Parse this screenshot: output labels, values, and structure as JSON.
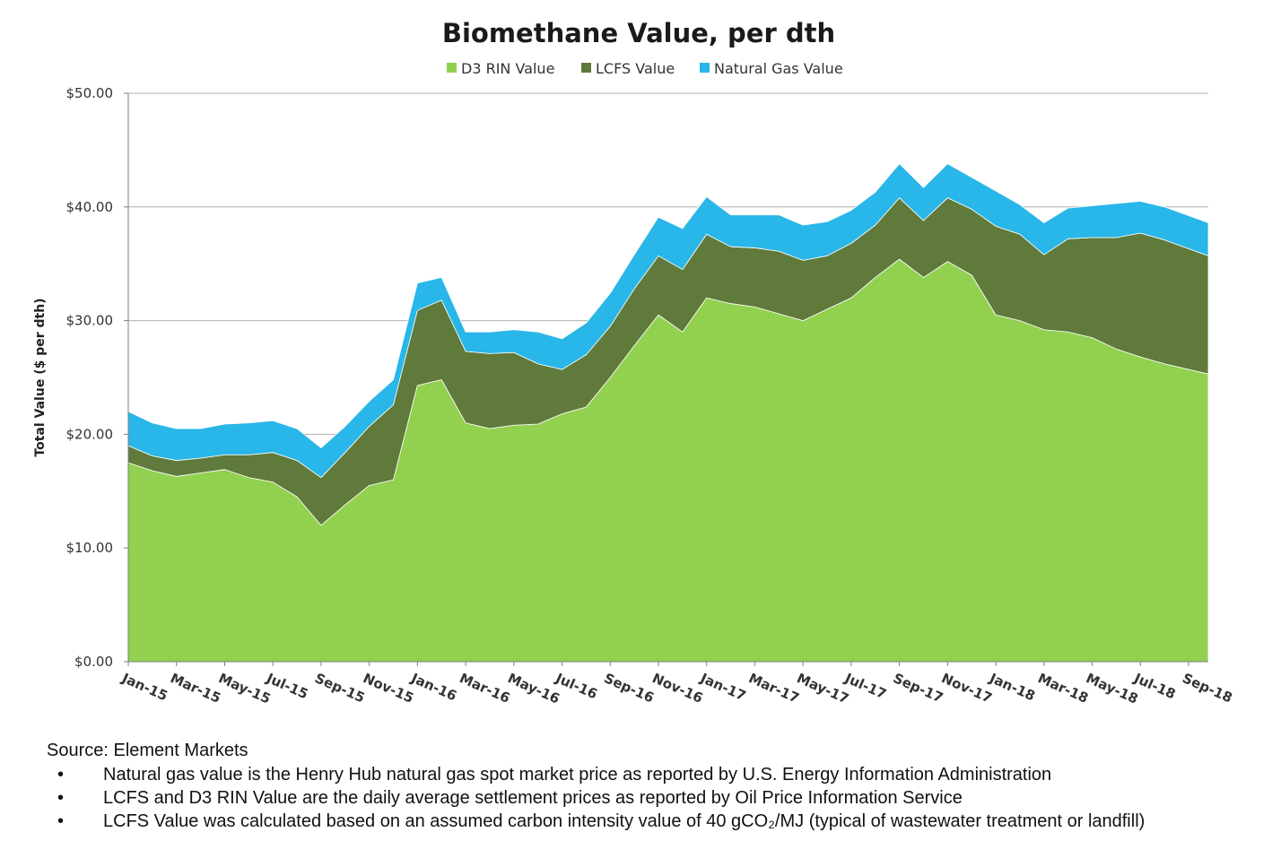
{
  "chart_data": {
    "type": "area",
    "stacked": true,
    "title": "Biomethane Value, per dth",
    "ylabel": "Total Value ($ per dth)",
    "xlabel": "",
    "ylim": [
      0,
      50
    ],
    "yticks": [
      "$0.00",
      "$10.00",
      "$20.00",
      "$30.00",
      "$40.00",
      "$50.00"
    ],
    "ytick_values": [
      0,
      10,
      20,
      30,
      40,
      50
    ],
    "grid": true,
    "legend_position": "top",
    "x_tick_labels": [
      "Jan-15",
      "Mar-15",
      "May-15",
      "Jul-15",
      "Sep-15",
      "Nov-15",
      "Jan-16",
      "Mar-16",
      "May-16",
      "Jul-16",
      "Sep-16",
      "Nov-16",
      "Jan-17",
      "Mar-17",
      "May-17",
      "Jul-17",
      "Sep-17",
      "Nov-17",
      "Jan-18",
      "Mar-18",
      "May-18",
      "Jul-18",
      "Sep-18"
    ],
    "x": [
      "2015-01",
      "2015-02",
      "2015-03",
      "2015-04",
      "2015-05",
      "2015-06",
      "2015-07",
      "2015-08",
      "2015-09",
      "2015-10",
      "2015-11",
      "2015-12",
      "2016-01",
      "2016-02",
      "2016-03",
      "2016-04",
      "2016-05",
      "2016-06",
      "2016-07",
      "2016-08",
      "2016-09",
      "2016-10",
      "2016-11",
      "2016-12",
      "2017-01",
      "2017-02",
      "2017-03",
      "2017-04",
      "2017-05",
      "2017-06",
      "2017-07",
      "2017-08",
      "2017-09",
      "2017-10",
      "2017-11",
      "2017-12",
      "2018-01",
      "2018-02",
      "2018-03",
      "2018-04",
      "2018-05",
      "2018-06",
      "2018-07",
      "2018-08",
      "2018-09"
    ],
    "series": [
      {
        "name": "D3 RIN Value",
        "color": "#92d050",
        "values": [
          17.5,
          16.8,
          16.3,
          16.6,
          16.9,
          16.2,
          15.8,
          14.5,
          12.0,
          13.8,
          15.5,
          16.0,
          24.3,
          24.8,
          21.0,
          20.5,
          20.8,
          20.9,
          21.8,
          22.4,
          25.0,
          27.8,
          30.5,
          29.0,
          32.0,
          31.5,
          31.2,
          30.6,
          30.0,
          31.0,
          32.0,
          33.8,
          35.4,
          33.8,
          35.2,
          34.0,
          30.5,
          30.0,
          29.2,
          29.0,
          28.5,
          27.5,
          26.8,
          26.2,
          25.3
        ]
      },
      {
        "name": "LCFS Value",
        "color": "#5f7a3a",
        "values": [
          1.5,
          1.3,
          1.4,
          1.3,
          1.3,
          2.0,
          2.6,
          3.2,
          4.2,
          4.6,
          5.2,
          6.6,
          6.6,
          7.0,
          6.3,
          6.6,
          6.4,
          5.3,
          3.9,
          4.6,
          4.5,
          5.0,
          5.2,
          5.5,
          5.6,
          5.0,
          5.2,
          5.5,
          5.3,
          4.7,
          4.8,
          4.6,
          5.4,
          5.0,
          5.6,
          5.8,
          7.8,
          7.6,
          6.6,
          8.2,
          8.8,
          9.8,
          10.9,
          10.9,
          10.4
        ]
      },
      {
        "name": "Natural Gas Value",
        "color": "#29b6e8",
        "values": [
          3.0,
          2.9,
          2.8,
          2.6,
          2.7,
          2.8,
          2.8,
          2.8,
          2.6,
          2.3,
          2.2,
          2.2,
          2.4,
          2.0,
          1.7,
          1.9,
          2.0,
          2.8,
          2.7,
          2.8,
          2.9,
          3.0,
          3.4,
          3.6,
          3.3,
          2.8,
          2.9,
          3.2,
          3.1,
          3.0,
          2.9,
          2.9,
          3.0,
          2.9,
          3.0,
          2.8,
          3.1,
          2.6,
          2.8,
          2.7,
          2.8,
          3.0,
          2.8,
          2.9,
          2.9
        ]
      }
    ]
  },
  "notes": {
    "source": "Source: Element Markets",
    "bullet_symbol": "•",
    "bullets": [
      "Natural gas value is the Henry Hub natural gas spot market price as reported by U.S. Energy Information Administration",
      "LCFS and D3 RIN Value are the daily average settlement prices as reported by Oil Price Information Service",
      "LCFS Value was calculated based on an assumed carbon intensity value of 40 gCO₂/MJ (typical of wastewater treatment or landfill)"
    ]
  }
}
